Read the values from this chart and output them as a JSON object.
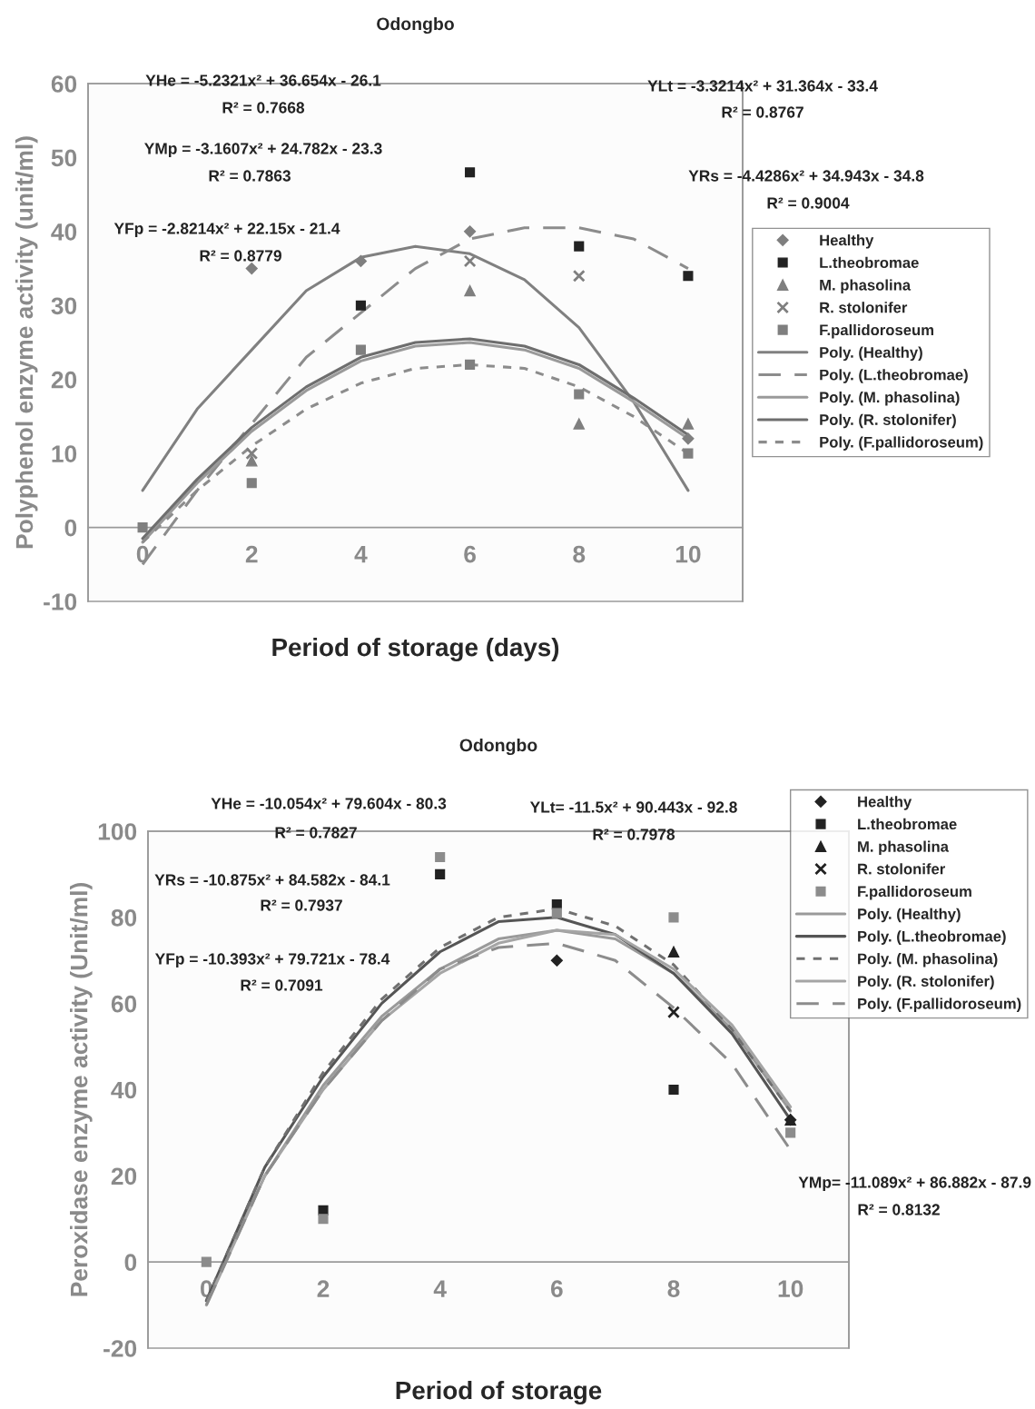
{
  "chart_data": [
    {
      "type": "scatter",
      "title": "Odongbo",
      "xlabel": "Period of storage (days)",
      "ylabel": "Polyphenol enzyme activity (unit/ml)",
      "x": [
        0,
        2,
        4,
        6,
        8,
        10
      ],
      "xlim": [
        -1,
        11
      ],
      "xticks": [
        0,
        2,
        4,
        6,
        8,
        10
      ],
      "ylim": [
        -10,
        60
      ],
      "yticks": [
        -10,
        0,
        10,
        20,
        30,
        40,
        50,
        60
      ],
      "grid": false,
      "legend": "right",
      "series": [
        {
          "name": "Healthy",
          "marker": "diamond",
          "color": "#7f7f7f",
          "values": [
            null,
            35,
            36,
            40,
            null,
            12
          ]
        },
        {
          "name": "L.theobromae",
          "marker": "square",
          "color": "#222222",
          "values": [
            null,
            null,
            30,
            48,
            38,
            34
          ]
        },
        {
          "name": "M. phasolina",
          "marker": "triangle",
          "color": "#7f7f7f",
          "values": [
            null,
            9,
            null,
            32,
            14,
            14
          ]
        },
        {
          "name": "R. stolonifer",
          "marker": "cross",
          "color": "#7f7f7f",
          "values": [
            null,
            10,
            null,
            36,
            34,
            null
          ]
        },
        {
          "name": "F.pallidoroseum",
          "marker": "square",
          "color": "#7f7f7f",
          "values": [
            0,
            6,
            24,
            22,
            18,
            10
          ]
        },
        {
          "name": "Poly. (Healthy)",
          "type": "line",
          "line_style": "solid",
          "color": "#808080",
          "x": [
            0,
            1,
            2,
            3,
            4,
            5,
            6,
            7,
            8,
            9,
            10
          ],
          "values": [
            5,
            16,
            24,
            32,
            36.5,
            38,
            37,
            33.5,
            27,
            17,
            5
          ]
        },
        {
          "name": "Poly. (L.theobromae)",
          "type": "line",
          "line_style": "dashed",
          "color": "#8c8c8c",
          "x": [
            0,
            1,
            2,
            3,
            4,
            5,
            6,
            7,
            8,
            9,
            10
          ],
          "values": [
            -5,
            5,
            14,
            23,
            29,
            35,
            39,
            40.5,
            40.5,
            39,
            35
          ]
        },
        {
          "name": "Poly. (M. phasolina)",
          "type": "line",
          "line_style": "solid",
          "color": "#9a9a9a",
          "x": [
            0,
            1,
            2,
            3,
            4,
            5,
            6,
            7,
            8,
            9,
            10
          ],
          "values": [
            -2,
            6,
            13,
            18.5,
            22.5,
            24.5,
            25,
            24,
            21.5,
            17,
            12
          ]
        },
        {
          "name": "Poly. (R. stolonifer)",
          "type": "line",
          "line_style": "solid",
          "color": "#6e6e6e",
          "x": [
            0,
            1,
            2,
            3,
            4,
            5,
            6,
            7,
            8,
            9,
            10
          ],
          "values": [
            -1.5,
            6.5,
            13.5,
            19,
            23,
            25,
            25.5,
            24.5,
            22,
            17.5,
            12.5
          ]
        },
        {
          "name": "Poly. (F.pallidoroseum)",
          "type": "line",
          "line_style": "dotted",
          "color": "#8c8c8c",
          "x": [
            0,
            1,
            2,
            3,
            4,
            5,
            6,
            7,
            8,
            9,
            10
          ],
          "values": [
            -2,
            5,
            11,
            16,
            19.5,
            21.5,
            22,
            21.5,
            19,
            15,
            10
          ]
        }
      ],
      "annotations": [
        "YHe = -5.2321x² + 36.654x - 26.1",
        "R² = 0.7668",
        "YMp = -3.1607x² + 24.782x - 23.3",
        "R² = 0.7863",
        "YFp = -2.8214x² + 22.15x - 21.4",
        "R² = 0.8779",
        "YLt = -3.3214x² + 31.364x - 33.4",
        "R² = 0.8767",
        "YRs = -4.4286x² + 34.943x - 34.8",
        "R² = 0.9004"
      ]
    },
    {
      "type": "scatter",
      "title": "Odongbo",
      "xlabel": "Period of storage",
      "ylabel": "Peroxidase enzyme activity (Unit/ml)",
      "x": [
        0,
        2,
        4,
        6,
        8,
        10
      ],
      "xlim": [
        -1,
        11
      ],
      "xticks": [
        0,
        2,
        4,
        6,
        8,
        10
      ],
      "ylim": [
        -20,
        100
      ],
      "yticks": [
        -20,
        0,
        20,
        40,
        60,
        80,
        100
      ],
      "grid": false,
      "legend": "top right",
      "series": [
        {
          "name": "Healthy",
          "marker": "diamond",
          "color": "#222222",
          "values": [
            null,
            null,
            null,
            70,
            null,
            33
          ]
        },
        {
          "name": "L.theobromae",
          "marker": "square",
          "color": "#222222",
          "values": [
            null,
            12,
            90,
            83,
            40,
            null
          ]
        },
        {
          "name": "M. phasolina",
          "marker": "triangle",
          "color": "#222222",
          "values": [
            null,
            null,
            null,
            null,
            72,
            33
          ]
        },
        {
          "name": "R. stolonifer",
          "marker": "cross",
          "color": "#222222",
          "values": [
            null,
            null,
            null,
            null,
            58,
            null
          ]
        },
        {
          "name": "F.pallidoroseum",
          "marker": "square",
          "color": "#8c8c8c",
          "values": [
            0,
            10,
            94,
            81,
            80,
            30
          ]
        },
        {
          "name": "Poly. (Healthy)",
          "type": "line",
          "line_style": "solid",
          "color": "#9a9a9a",
          "x": [
            0,
            1,
            2,
            3,
            4,
            5,
            6,
            7,
            8,
            9,
            10
          ],
          "values": [
            -9,
            20,
            41,
            57,
            68,
            75,
            77,
            75,
            67,
            54,
            35
          ]
        },
        {
          "name": "Poly. (L.theobromae)",
          "type": "line",
          "line_style": "solid",
          "color": "#555555",
          "x": [
            0,
            1,
            2,
            3,
            4,
            5,
            6,
            7,
            8,
            9,
            10
          ],
          "values": [
            -9,
            22,
            43,
            60,
            72,
            79,
            80,
            76,
            67,
            53,
            33
          ]
        },
        {
          "name": "Poly. (M. phasolina)",
          "type": "line",
          "line_style": "dotted",
          "color": "#707070",
          "x": [
            0,
            1,
            2,
            3,
            4,
            5,
            6,
            7,
            8,
            9,
            10
          ],
          "values": [
            -9,
            22,
            44,
            61,
            73,
            80,
            82,
            78,
            69,
            54,
            35
          ]
        },
        {
          "name": "Poly. (R. stolonifer)",
          "type": "line",
          "line_style": "solid",
          "color": "#a5a5a5",
          "x": [
            0,
            1,
            2,
            3,
            4,
            5,
            6,
            7,
            8,
            9,
            10
          ],
          "values": [
            -10,
            20,
            40,
            56,
            67,
            74,
            77,
            76,
            68,
            55,
            36
          ]
        },
        {
          "name": "Poly. (F.pallidoroseum)",
          "type": "line",
          "line_style": "dashed",
          "color": "#8c8c8c",
          "x": [
            0,
            1,
            2,
            3,
            4,
            5,
            6,
            7,
            8,
            9,
            10
          ],
          "values": [
            -10,
            20,
            40,
            56,
            68,
            73,
            74,
            70,
            59,
            46,
            26
          ]
        }
      ],
      "annotations": [
        "YHe = -10.054x² + 79.604x - 80.3",
        "R² = 0.7827",
        "YRs = -10.875x² + 84.582x - 84.1",
        "R² = 0.7937",
        "YFp = -10.393x² + 79.721x - 78.4",
        "R² = 0.7091",
        "YLt= -11.5x² + 90.443x - 92.8",
        "R² = 0.7978",
        "YMp= -11.089x² + 86.882x - 87.9",
        "R² = 0.8132"
      ]
    }
  ]
}
